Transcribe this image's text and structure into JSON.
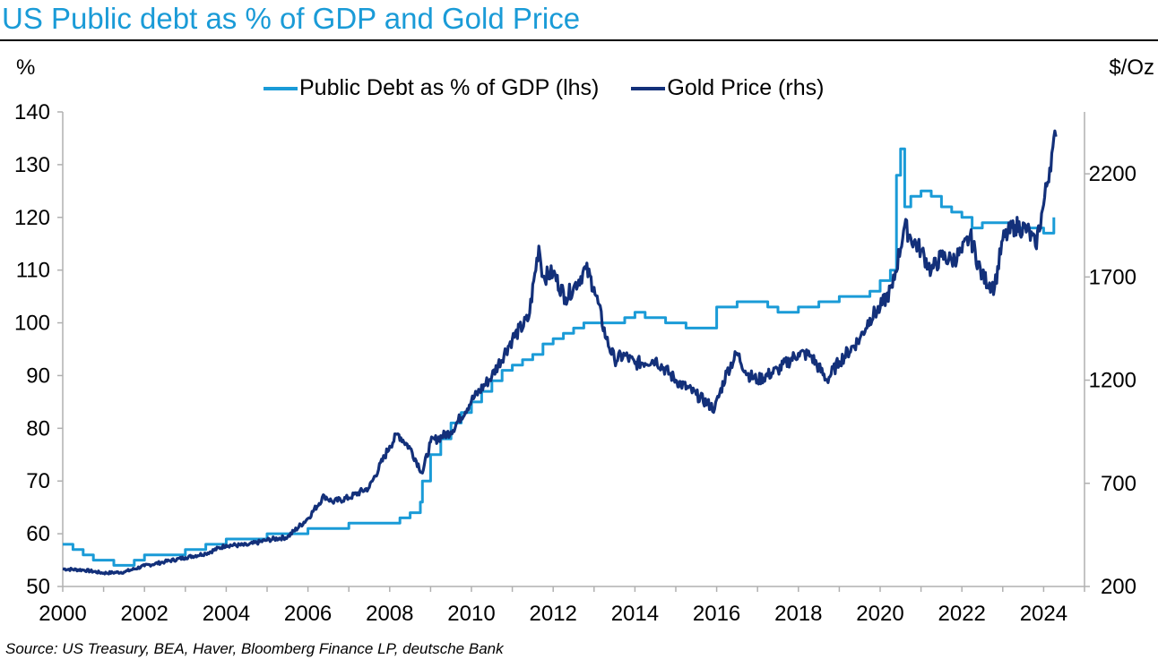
{
  "chart_data": {
    "type": "line",
    "title": "US Public debt as % of GDP and Gold Price",
    "left_unit": "%",
    "right_unit": "$/Oz",
    "source": "Source: US Treasury, BEA, Haver, Bloomberg Finance LP, deutsche Bank",
    "x_ticks": [
      "2000",
      "2002",
      "2004",
      "2006",
      "2008",
      "2010",
      "2012",
      "2014",
      "2016",
      "2018",
      "2020",
      "2022",
      "2024"
    ],
    "xlim": [
      2000,
      2025
    ],
    "y_left": {
      "ticks": [
        "50",
        "60",
        "70",
        "80",
        "90",
        "100",
        "110",
        "120",
        "130",
        "140"
      ],
      "ylim": [
        50,
        140
      ]
    },
    "y_right": {
      "ticks": [
        "200",
        "700",
        "1200",
        "1700",
        "2200"
      ],
      "ylim": [
        200,
        2500
      ]
    },
    "series": [
      {
        "name": "Public Debt as % of GDP (lhs)",
        "axis": "left",
        "color": "#1a9bd7",
        "x": [
          2000.0,
          2000.25,
          2000.5,
          2000.75,
          2001.0,
          2001.25,
          2001.5,
          2001.75,
          2002.0,
          2002.5,
          2003.0,
          2003.5,
          2004.0,
          2004.5,
          2005.0,
          2005.5,
          2006.0,
          2006.5,
          2007.0,
          2007.5,
          2008.0,
          2008.25,
          2008.5,
          2008.75,
          2008.8,
          2009.0,
          2009.25,
          2009.5,
          2009.75,
          2010.0,
          2010.25,
          2010.5,
          2010.75,
          2011.0,
          2011.25,
          2011.5,
          2011.75,
          2012.0,
          2012.25,
          2012.5,
          2012.75,
          2013.0,
          2013.25,
          2013.5,
          2013.75,
          2014.0,
          2014.25,
          2014.5,
          2014.75,
          2015.0,
          2015.25,
          2015.5,
          2015.75,
          2016.0,
          2016.25,
          2016.5,
          2016.75,
          2017.0,
          2017.25,
          2017.5,
          2017.75,
          2018.0,
          2018.25,
          2018.5,
          2018.75,
          2019.0,
          2019.25,
          2019.5,
          2019.75,
          2020.0,
          2020.25,
          2020.4,
          2020.5,
          2020.6,
          2020.75,
          2021.0,
          2021.25,
          2021.5,
          2021.75,
          2022.0,
          2022.25,
          2022.5,
          2022.75,
          2023.0,
          2023.25,
          2023.5,
          2023.75,
          2024.0,
          2024.25
        ],
        "values": [
          58,
          57,
          56,
          55,
          55,
          54,
          54,
          55,
          56,
          56,
          57,
          58,
          59,
          59,
          60,
          60,
          61,
          61,
          62,
          62,
          62,
          63,
          64,
          66,
          70,
          75,
          78,
          81,
          83,
          85,
          87,
          89,
          91,
          92,
          93,
          94,
          96,
          97,
          98,
          99,
          100,
          100,
          100,
          100,
          101,
          102,
          101,
          101,
          100,
          100,
          99,
          99,
          99,
          103,
          103,
          104,
          104,
          104,
          103,
          102,
          102,
          103,
          103,
          104,
          104,
          105,
          105,
          105,
          106,
          108,
          110,
          128,
          133,
          122,
          124,
          125,
          124,
          122,
          121,
          120,
          118,
          119,
          119,
          119,
          118,
          118,
          118,
          117,
          120
        ]
      },
      {
        "name": "Gold Price (rhs)",
        "axis": "right",
        "color": "#13307a",
        "x": [
          2000.0,
          2000.5,
          2001.0,
          2001.5,
          2002.0,
          2002.5,
          2003.0,
          2003.5,
          2004.0,
          2004.5,
          2005.0,
          2005.5,
          2006.0,
          2006.4,
          2006.6,
          2007.0,
          2007.5,
          2008.0,
          2008.2,
          2008.5,
          2008.8,
          2009.0,
          2009.5,
          2010.0,
          2010.5,
          2011.0,
          2011.4,
          2011.65,
          2011.75,
          2012.0,
          2012.3,
          2012.5,
          2012.8,
          2013.0,
          2013.3,
          2013.5,
          2013.75,
          2014.0,
          2014.5,
          2015.0,
          2015.5,
          2015.95,
          2016.25,
          2016.5,
          2016.75,
          2017.0,
          2017.5,
          2018.0,
          2018.3,
          2018.7,
          2019.0,
          2019.5,
          2019.75,
          2020.0,
          2020.3,
          2020.6,
          2020.75,
          2021.0,
          2021.25,
          2021.5,
          2021.75,
          2022.0,
          2022.2,
          2022.5,
          2022.8,
          2023.0,
          2023.3,
          2023.6,
          2023.8,
          2024.0,
          2024.2,
          2024.3
        ],
        "values": [
          285,
          280,
          265,
          270,
          300,
          320,
          340,
          360,
          400,
          400,
          425,
          440,
          530,
          640,
          610,
          630,
          680,
          880,
          940,
          870,
          750,
          900,
          950,
          1100,
          1220,
          1400,
          1500,
          1850,
          1700,
          1720,
          1600,
          1650,
          1740,
          1650,
          1400,
          1300,
          1320,
          1280,
          1300,
          1200,
          1130,
          1060,
          1240,
          1330,
          1230,
          1200,
          1250,
          1330,
          1320,
          1200,
          1290,
          1400,
          1500,
          1550,
          1650,
          1950,
          1890,
          1830,
          1730,
          1800,
          1780,
          1820,
          1900,
          1700,
          1650,
          1880,
          1950,
          1930,
          1850,
          2050,
          2300,
          2380
        ]
      }
    ]
  }
}
